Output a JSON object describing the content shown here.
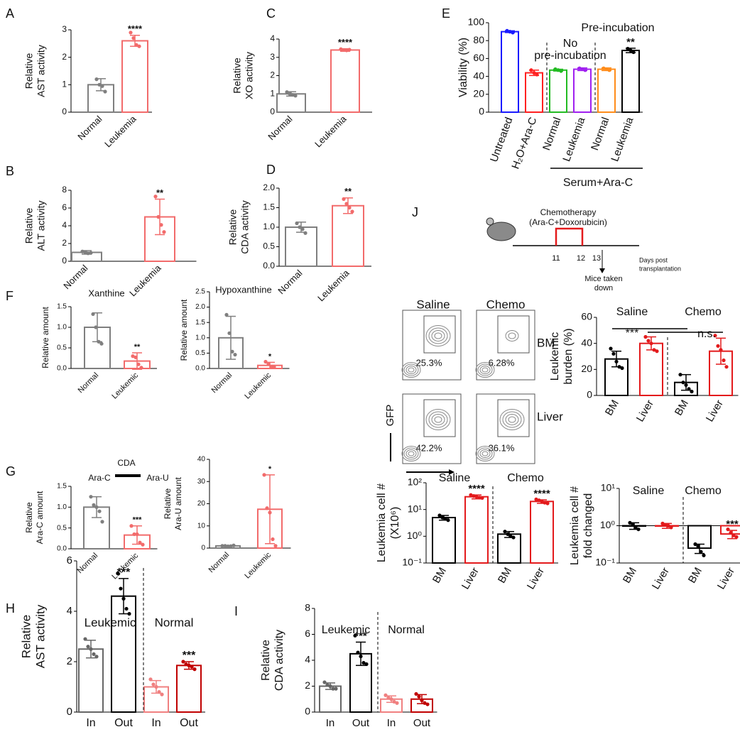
{
  "chart_data": [
    {
      "type": "bar",
      "panel": "A",
      "ylabel": [
        "Relative",
        "AST activity"
      ],
      "categories": [
        "Normal",
        "Leukemia"
      ],
      "values": [
        1.0,
        2.6
      ],
      "errors": [
        0.22,
        0.2
      ],
      "colors": [
        "#7f7f7f",
        "#f26b6b"
      ],
      "points": [
        [
          1.2,
          1.0,
          0.95,
          0.75
        ],
        [
          2.9,
          2.7,
          2.45,
          2.4
        ]
      ],
      "stars": [
        null,
        "****"
      ],
      "ylim": [
        0,
        3
      ],
      "yticks": [
        0,
        1,
        2,
        3
      ]
    },
    {
      "type": "bar",
      "panel": "B",
      "ylabel": [
        "Relative",
        "ALT activity"
      ],
      "categories": [
        "Normal",
        "Leukemia"
      ],
      "values": [
        1.0,
        5.0
      ],
      "errors": [
        0.2,
        2.0
      ],
      "colors": [
        "#7f7f7f",
        "#f26b6b"
      ],
      "points": [
        [
          1.1,
          1.0,
          0.9,
          0.95
        ],
        [
          7.3,
          5.0,
          4.1,
          3.3
        ]
      ],
      "stars": [
        null,
        "**"
      ],
      "ylim": [
        0,
        8
      ],
      "yticks": [
        0,
        2,
        4,
        6,
        8
      ]
    },
    {
      "type": "bar",
      "panel": "C",
      "ylabel": [
        "Relative",
        "XO activity"
      ],
      "categories": [
        "Normal",
        "Leukemia"
      ],
      "values": [
        1.0,
        3.4
      ],
      "errors": [
        0.12,
        0.07
      ],
      "colors": [
        "#7f7f7f",
        "#f26b6b"
      ],
      "points": [
        [
          1.1,
          1.0,
          0.95,
          0.9
        ],
        [
          3.45,
          3.4,
          3.38,
          3.42
        ]
      ],
      "stars": [
        null,
        "****"
      ],
      "ylim": [
        0,
        4
      ],
      "yticks": [
        0,
        1,
        2,
        3,
        4
      ]
    },
    {
      "type": "bar",
      "panel": "D",
      "ylabel": [
        "Relative",
        "CDA activity"
      ],
      "categories": [
        "Normal",
        "Leukemia"
      ],
      "values": [
        1.0,
        1.55
      ],
      "errors": [
        0.13,
        0.2
      ],
      "colors": [
        "#7f7f7f",
        "#f26b6b"
      ],
      "points": [
        [
          1.1,
          1.0,
          0.95,
          0.85
        ],
        [
          1.72,
          1.6,
          1.5,
          1.4
        ]
      ],
      "stars": [
        null,
        "**"
      ],
      "ylim": [
        0,
        2
      ],
      "yticks": [
        {
          "value": 0,
          "label": "0.0"
        },
        0.5,
        {
          "value": 1,
          "label": "1.0"
        },
        1.5,
        {
          "value": 2,
          "label": "2.0"
        }
      ]
    },
    {
      "type": "bar",
      "panel": "E",
      "ylabel": [
        "Viability (%)"
      ],
      "categories": [
        "Untreated",
        "H₂O+Ara-C",
        "Normal",
        "Leukemia",
        "Normal",
        "Leukemia"
      ],
      "values": [
        90,
        44,
        47,
        48,
        48,
        69
      ],
      "errors": [
        1,
        3,
        1,
        1.5,
        1.5,
        2.5
      ],
      "colors": [
        "#1a1aff",
        "#ff2020",
        "#22bb22",
        "#a020f0",
        "#ff8c1a",
        "#000000"
      ],
      "points": [
        [
          91,
          90,
          89
        ],
        [
          47,
          44,
          42
        ],
        [
          48,
          47,
          46
        ],
        [
          49,
          48,
          47
        ],
        [
          49,
          48,
          47
        ],
        [
          71,
          69,
          67
        ]
      ],
      "stars": [
        null,
        null,
        null,
        null,
        null,
        "**"
      ],
      "annotations": [
        "No",
        "pre-incubation",
        "Pre-incubation",
        "Serum+Ara-C"
      ],
      "ylim": [
        0,
        100
      ],
      "yticks": [
        0,
        20,
        40,
        60,
        80,
        100
      ]
    },
    {
      "type": "bar",
      "panel": "F",
      "title": "Xanthine",
      "ylabel": [
        "Relative amount"
      ],
      "categories": [
        "Normal",
        "Leukemic"
      ],
      "values": [
        1.0,
        0.18
      ],
      "errors": [
        0.35,
        0.2
      ],
      "colors": [
        "#7f7f7f",
        "#f26b6b"
      ],
      "points": [
        [
          1.32,
          1.0,
          0.65,
          0.6
        ],
        [
          0.3,
          0.27,
          0.1,
          0.02
        ]
      ],
      "stars": [
        null,
        "**"
      ],
      "ylim": [
        0,
        1.5
      ],
      "yticks": [
        {
          "value": 0,
          "label": "0.0"
        },
        0.5,
        {
          "value": 1,
          "label": "1.0"
        },
        1.5
      ]
    },
    {
      "type": "bar",
      "title": "Hypoxanthine",
      "ylabel": [
        "Relative amount"
      ],
      "categories": [
        "Normal",
        "Leukemic"
      ],
      "values": [
        1.0,
        0.1
      ],
      "errors": [
        0.7,
        0.1
      ],
      "colors": [
        "#7f7f7f",
        "#f26b6b"
      ],
      "points": [
        [
          1.75,
          1.15,
          0.55,
          0.45
        ],
        [
          0.22,
          0.15,
          0.05,
          0.05
        ]
      ],
      "stars": [
        null,
        "*"
      ],
      "ylim": [
        0,
        2.5
      ],
      "yticks": [
        {
          "value": 0,
          "label": "0.0"
        },
        0.5,
        {
          "value": 1,
          "label": "1.0"
        },
        1.5,
        {
          "value": 2,
          "label": "2.0"
        },
        2.5
      ]
    },
    {
      "type": "bar",
      "panel": "G",
      "ylabel": [
        "Relative",
        "Ara-C amount"
      ],
      "categories": [
        "Normal",
        "Leukemic"
      ],
      "values": [
        1.0,
        0.33
      ],
      "errors": [
        0.25,
        0.22
      ],
      "colors": [
        "#7f7f7f",
        "#f26b6b"
      ],
      "points": [
        [
          1.25,
          1.05,
          1.0,
          0.9,
          0.65
        ],
        [
          0.55,
          0.35,
          0.35,
          0.15,
          0.1
        ]
      ],
      "stars": [
        null,
        "***"
      ],
      "annotations": [
        "Ara-C",
        "CDA",
        "Ara-U"
      ],
      "ylim": [
        0,
        1.5
      ],
      "yticks": [
        {
          "value": 0,
          "label": "0.0"
        },
        0.5,
        {
          "value": 1,
          "label": "1.0"
        },
        1.5
      ]
    },
    {
      "type": "bar",
      "ylabel": [
        "Relative",
        "Ara-U amount"
      ],
      "categories": [
        "Normal",
        "Leukemic"
      ],
      "values": [
        1.0,
        17.5
      ],
      "errors": [
        0.2,
        15.5
      ],
      "colors": [
        "#7f7f7f",
        "#f26b6b"
      ],
      "points": [
        [
          1.0,
          1.0,
          0.8,
          0.9,
          1.2
        ],
        [
          33,
          18,
          16,
          4,
          1
        ]
      ],
      "stars": [
        null,
        "*"
      ],
      "ylim": [
        0,
        40
      ],
      "yticks": [
        0,
        10,
        20,
        30,
        40
      ]
    },
    {
      "type": "bar",
      "panel": "H",
      "ylabel": [
        "Relative",
        "AST activity"
      ],
      "categories": [
        "In",
        "Out",
        "In",
        "Out"
      ],
      "values": [
        2.5,
        4.6,
        1.0,
        1.85
      ],
      "errors": [
        0.35,
        0.7,
        0.25,
        0.15
      ],
      "colors": [
        "#666666",
        "#000000",
        "#f08080",
        "#c00000"
      ],
      "points": [
        [
          2.9,
          2.6,
          2.5,
          2.3,
          2.2
        ],
        [
          5.5,
          4.9,
          4.5,
          4.1,
          3.9
        ],
        [
          1.3,
          1.1,
          1.0,
          0.8,
          0.7
        ],
        [
          2.0,
          1.9,
          1.85,
          1.8,
          1.7
        ]
      ],
      "stars": [
        null,
        "***",
        null,
        "***"
      ],
      "annotations": [
        "Leukemic",
        "Normal"
      ],
      "ylim": [
        0,
        6
      ],
      "yticks": [
        0,
        2,
        4,
        6
      ]
    },
    {
      "type": "bar",
      "panel": "I",
      "ylabel": [
        "Relative",
        "CDA activity"
      ],
      "categories": [
        "In",
        "Out",
        "In",
        "Out"
      ],
      "values": [
        2.0,
        4.5,
        1.0,
        1.0
      ],
      "errors": [
        0.25,
        0.9,
        0.25,
        0.35
      ],
      "colors": [
        "#666666",
        "#000000",
        "#f08080",
        "#c00000"
      ],
      "points": [
        [
          2.3,
          2.1,
          2.0,
          1.8,
          1.8
        ],
        [
          5.9,
          4.6,
          4.3,
          3.8,
          3.7
        ],
        [
          1.3,
          1.1,
          1.0,
          0.8,
          0.7
        ],
        [
          1.4,
          1.2,
          0.9,
          0.7,
          0.6
        ]
      ],
      "stars": [
        null,
        "***",
        null,
        null
      ],
      "annotations": [
        "Leukemic",
        "Normal"
      ],
      "ylim": [
        0,
        8
      ],
      "yticks": [
        0,
        2,
        4,
        6,
        8
      ]
    },
    {
      "type": "bar",
      "ylabel": [
        "Leukemic",
        "burden (%)"
      ],
      "categories": [
        "BM",
        "Liver",
        "BM",
        "Liver"
      ],
      "values": [
        28,
        40,
        10,
        34
      ],
      "errors": [
        6,
        5,
        6,
        10
      ],
      "colors": [
        "#000000",
        "#e31a1c",
        "#000000",
        "#e31a1c"
      ],
      "points": [
        [
          36,
          32,
          26,
          22,
          21
        ],
        [
          45,
          42,
          40,
          35,
          34
        ],
        [
          16,
          10,
          8,
          5,
          3
        ],
        [
          46,
          38,
          35,
          27,
          22
        ]
      ],
      "annotations": [
        "Saline",
        "Chemo",
        "***",
        "n.s."
      ],
      "ylim": [
        0,
        60
      ],
      "yticks": [
        0,
        20,
        40,
        60
      ]
    },
    {
      "type": "bar",
      "log_scale": true,
      "ylabel": [
        "Leukemia cell #",
        "(X10⁶)"
      ],
      "categories": [
        "BM",
        "Liver",
        "BM",
        "Liver"
      ],
      "values": [
        5,
        30,
        1.2,
        20
      ],
      "errors": [
        1,
        5,
        0.3,
        3
      ],
      "colors": [
        "#000000",
        "#e31a1c",
        "#000000",
        "#e31a1c"
      ],
      "points": [
        [
          6,
          5,
          4.5,
          4
        ],
        [
          35,
          32,
          30,
          28,
          27
        ],
        [
          1.5,
          1.2,
          1.0,
          0.9
        ],
        [
          24,
          22,
          20,
          18,
          17
        ]
      ],
      "stars": [
        null,
        "****",
        null,
        "****"
      ],
      "annotations": [
        "Saline",
        "Chemo"
      ],
      "ylim": [
        0.1,
        100
      ],
      "yticks": [
        {
          "value": 0.1,
          "label": "10⁻¹"
        },
        {
          "value": 1,
          "label": "10⁰"
        },
        {
          "value": 10,
          "label": "10¹"
        },
        {
          "value": 100,
          "label": "10²"
        }
      ]
    },
    {
      "type": "bar",
      "log_scale": true,
      "bar_origin": 1,
      "ylabel": [
        "Leukemia cell #",
        "fold changed"
      ],
      "categories": [
        "BM",
        "Liver",
        "BM",
        "Liver"
      ],
      "values": [
        1.0,
        1.0,
        0.25,
        0.6
      ],
      "errors": [
        0.2,
        0.15,
        0.07,
        0.15
      ],
      "colors": [
        "#000000",
        "#e31a1c",
        "#000000",
        "#e31a1c"
      ],
      "points": [
        [
          1.2,
          1.1,
          0.9,
          0.8
        ],
        [
          1.15,
          1.05,
          1.0,
          0.9
        ],
        [
          0.32,
          0.28,
          0.2,
          0.16
        ],
        [
          0.8,
          0.65,
          0.55,
          0.5
        ]
      ],
      "stars": [
        null,
        null,
        null,
        "***"
      ],
      "annotations": [
        "Saline",
        "Chemo"
      ],
      "ylim": [
        0.1,
        10
      ],
      "yticks": [
        {
          "value": 0.1,
          "label": "10⁻¹"
        },
        {
          "value": 1,
          "label": "10⁰"
        },
        {
          "value": 10,
          "label": "10¹"
        }
      ]
    }
  ],
  "schematic": {
    "panel": "J",
    "treatment": [
      "Chemotherapy",
      "(Ara-C+Doxorubicin)"
    ],
    "days": [
      11,
      12,
      13
    ],
    "x_label": [
      "Days post",
      "transplantation"
    ],
    "endpoint": [
      "Mice taken",
      "down"
    ]
  },
  "flow": {
    "columns": [
      "Saline",
      "Chemo"
    ],
    "rows": [
      "BM",
      "Liver"
    ],
    "gates": [
      [
        "25.3%",
        "6.28%"
      ],
      [
        "42.2%",
        "36.1%"
      ]
    ],
    "y_label": "GFP"
  }
}
